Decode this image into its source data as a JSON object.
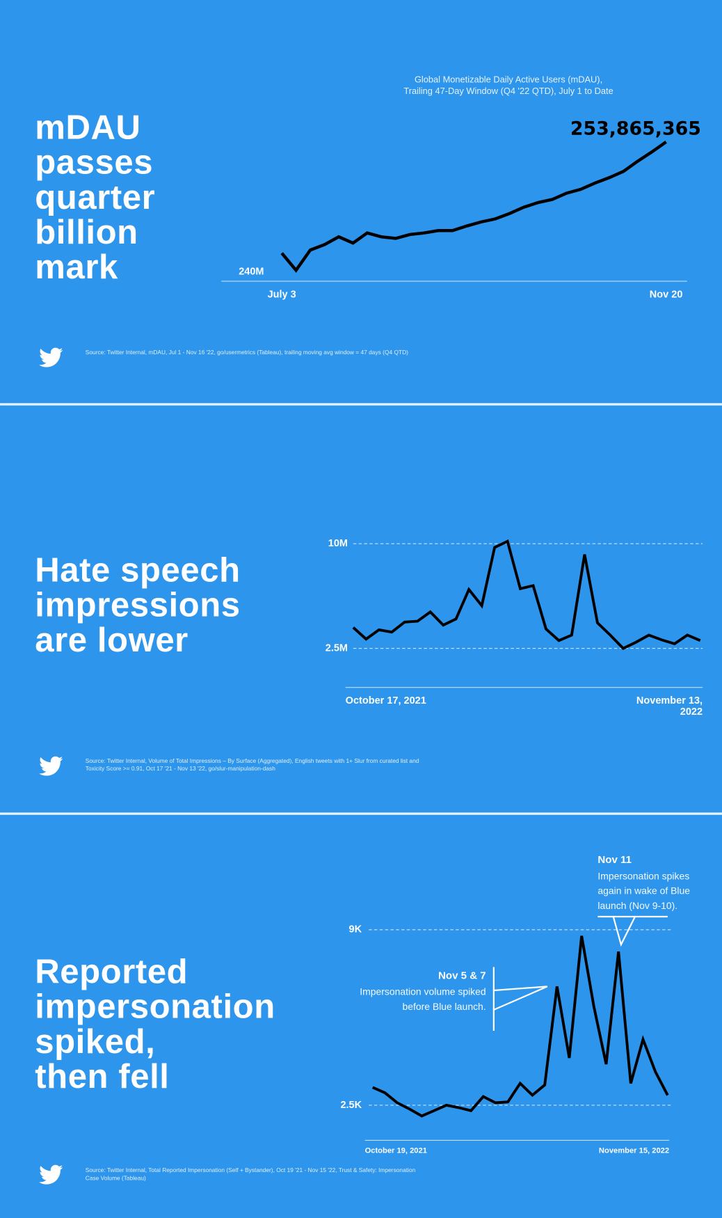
{
  "panels": [
    {
      "headline": [
        "mDAU",
        "passes",
        "quarter",
        "billion",
        "mark"
      ],
      "source": "Source: Twitter Internal, mDAU, Jul 1 - Nov 16 '22, go/usermetrics (Tableau), trailing moving avg window = 47 days (Q4 QTD)"
    },
    {
      "headline": [
        "Hate speech",
        "impressions",
        "are lower"
      ],
      "source": "Source: Twitter Internal, Volume of Total Impressions – By Surface (Aggregated), English tweets with 1+ Slur from curated list and Toxicity Score >= 0.91, Oct 17 '21 - Nov 13 '22, go/slur-manipulation-dash"
    },
    {
      "headline": [
        "Reported",
        "impersonation",
        "spiked,",
        "then fell"
      ],
      "source": "Source: Twitter Internal, Total Reported Impersonation (Self + Bystander), Oct 19 '21 - Nov 15 '22, Trust & Safety: Impersonation Case Volume (Tableau)"
    }
  ],
  "chart_data": [
    {
      "type": "line",
      "title": [
        "Global Monetizable Daily Active Users (mDAU),",
        "Trailing 47-Day Window (Q4 '22 QTD), July 1 to Date"
      ],
      "categories": [
        "July 3",
        null,
        null,
        null,
        null,
        null,
        null,
        null,
        null,
        null,
        null,
        null,
        null,
        null,
        null,
        null,
        null,
        null,
        null,
        null,
        null,
        null,
        null,
        null,
        null,
        null,
        null,
        "Nov 20"
      ],
      "values": [
        242790000,
        241090000,
        243100000,
        243640000,
        244420000,
        243800000,
        244800000,
        244420000,
        244260000,
        244650000,
        244800000,
        245040000,
        245040000,
        245500000,
        245900000,
        246200000,
        246740000,
        247360000,
        247830000,
        248140000,
        248760000,
        249150000,
        249770000,
        250310000,
        250930000,
        251940000,
        252870000,
        253865365
      ],
      "value_labels": [
        null,
        null,
        null,
        null,
        null,
        null,
        null,
        null,
        null,
        null,
        null,
        null,
        null,
        null,
        null,
        null,
        null,
        null,
        null,
        null,
        null,
        null,
        null,
        null,
        null,
        null,
        null,
        "253,865,365"
      ],
      "color": "#000000",
      "ylim": [
        240000000,
        254000000
      ],
      "yticks": [
        {
          "value": 240000000,
          "label": "240M"
        }
      ],
      "grid": false
    },
    {
      "type": "line",
      "categories": [
        "October 17, 2021",
        null,
        null,
        null,
        null,
        null,
        null,
        null,
        null,
        null,
        null,
        null,
        null,
        null,
        null,
        null,
        null,
        null,
        null,
        null,
        null,
        null,
        null,
        null,
        null,
        null,
        null,
        "November 13, 2022"
      ],
      "values": [
        4000000,
        3170000,
        3830000,
        3670000,
        4390000,
        4450000,
        5110000,
        4170000,
        4610000,
        6720000,
        5560000,
        9730000,
        10170000,
        6780000,
        7000000,
        3890000,
        3060000,
        3450000,
        9230000,
        4330000,
        3450000,
        2500000,
        2940000,
        3450000,
        3110000,
        2830000,
        3450000,
        3060000
      ],
      "color": "#000000",
      "ylim": [
        -300000,
        10500000
      ],
      "yticks": [
        {
          "value": 10000000,
          "label": "10M"
        },
        {
          "value": 2500000,
          "label": "2.5M"
        }
      ],
      "grid": true
    },
    {
      "type": "line",
      "categories": [
        "October 19, 2021",
        null,
        null,
        null,
        null,
        null,
        null,
        null,
        null,
        null,
        null,
        null,
        null,
        null,
        null,
        null,
        null,
        null,
        null,
        null,
        null,
        null,
        null,
        null,
        "November 15, 2022"
      ],
      "values": [
        3160,
        2960,
        2590,
        2360,
        2100,
        2300,
        2500,
        2410,
        2300,
        2820,
        2590,
        2620,
        3310,
        2870,
        3250,
        6900,
        4250,
        8770,
        6150,
        4020,
        8190,
        3310,
        4940,
        3740,
        2870
      ],
      "color": "#000000",
      "ylim": [
        1200,
        9600
      ],
      "yticks": [
        {
          "value": 9000,
          "label": "9K"
        },
        {
          "value": 2500,
          "label": "2.5K"
        }
      ],
      "grid": true,
      "annotations": [
        {
          "title": "Nov 5 & 7",
          "text": "Impersonation volume spiked before Blue launch."
        },
        {
          "title": "Nov 11",
          "text": "Impersonation spikes again in wake of Blue launch (Nov 9-10)."
        }
      ]
    }
  ]
}
